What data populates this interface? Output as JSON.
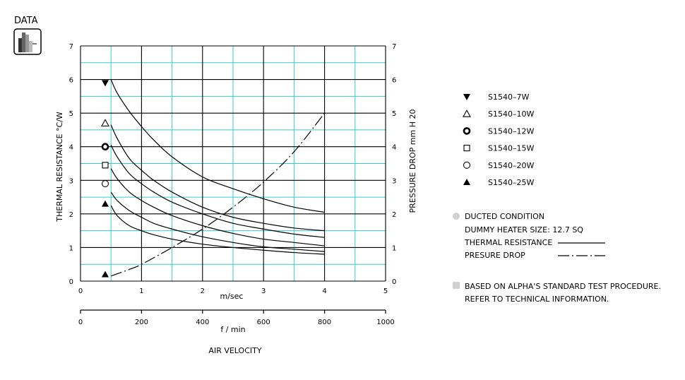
{
  "badge": {
    "label": "DATA",
    "icon": "bar-chart-icon"
  },
  "colors": {
    "grid_major": "#000000",
    "grid_minor": "#33cccc",
    "curve": "#000000",
    "note_bullet": "#d0d0d0"
  },
  "chart_data": {
    "type": "line",
    "grid": true,
    "y_left": {
      "label": "THERMAL  RESISTANCE  °C/W",
      "ylim": [
        0,
        7
      ],
      "ticks": [
        "0",
        "1",
        "2",
        "3",
        "4",
        "5",
        "6",
        "7"
      ]
    },
    "y_right": {
      "label": "PRESSURE  DROP    mm H 20",
      "ylim": [
        0,
        7
      ],
      "ticks": [
        "0",
        "1",
        "2",
        "3",
        "4",
        "5",
        "6",
        "7"
      ]
    },
    "x_top": {
      "unit": "m/sec",
      "xlim": [
        0,
        5
      ],
      "ticks": [
        "0",
        "1",
        "2",
        "3",
        "4",
        "5"
      ]
    },
    "x_bottom": {
      "unit": "f / min",
      "xlim": [
        0,
        1000
      ],
      "ticks": [
        "0",
        "200",
        "400",
        "600",
        "800",
        "1000"
      ]
    },
    "x_title": "AIR VELOCITY",
    "series": [
      {
        "name": "S1540–7W",
        "marker": "triangle-down-filled",
        "marker_value": 5.9,
        "x": [
          0.5,
          0.6,
          0.8,
          1.0,
          1.2,
          1.5,
          2.0,
          2.5,
          3.0,
          3.5,
          4.0
        ],
        "y": [
          6.0,
          5.6,
          5.05,
          4.6,
          4.2,
          3.7,
          3.1,
          2.75,
          2.45,
          2.2,
          2.05
        ]
      },
      {
        "name": "S1540–10W",
        "marker": "triangle-up-open",
        "marker_value": 4.7,
        "x": [
          0.5,
          0.6,
          0.8,
          1.0,
          1.2,
          1.5,
          2.0,
          2.5,
          3.0,
          3.5,
          4.0
        ],
        "y": [
          4.65,
          4.25,
          3.65,
          3.3,
          3.0,
          2.65,
          2.2,
          1.9,
          1.72,
          1.58,
          1.5
        ]
      },
      {
        "name": "S1540–12W",
        "marker": "circle-bold",
        "marker_value": 4.0,
        "x": [
          0.5,
          0.6,
          0.8,
          1.0,
          1.2,
          1.5,
          2.0,
          2.5,
          3.0,
          3.5,
          4.0
        ],
        "y": [
          4.05,
          3.7,
          3.2,
          2.9,
          2.65,
          2.35,
          2.0,
          1.72,
          1.55,
          1.4,
          1.3
        ]
      },
      {
        "name": "S1540–15W",
        "marker": "square-open",
        "marker_value": 3.45,
        "x": [
          0.5,
          0.6,
          0.8,
          1.0,
          1.2,
          1.5,
          2.0,
          2.5,
          3.0,
          3.5,
          4.0
        ],
        "y": [
          3.35,
          3.05,
          2.65,
          2.4,
          2.2,
          1.95,
          1.65,
          1.42,
          1.25,
          1.15,
          1.05
        ]
      },
      {
        "name": "S1540–20W",
        "marker": "circle-open",
        "marker_value": 2.9,
        "x": [
          0.5,
          0.6,
          0.8,
          1.0,
          1.2,
          1.5,
          2.0,
          2.5,
          3.0,
          3.5,
          4.0
        ],
        "y": [
          2.65,
          2.4,
          2.1,
          1.9,
          1.72,
          1.55,
          1.32,
          1.15,
          1.02,
          0.95,
          0.88
        ]
      },
      {
        "name": "S1540–25W",
        "marker": "triangle-up-filled",
        "marker_value": 2.3,
        "x": [
          0.5,
          0.6,
          0.8,
          1.0,
          1.2,
          1.5,
          2.0,
          2.5,
          3.0,
          3.5,
          4.0
        ],
        "y": [
          2.25,
          1.95,
          1.65,
          1.5,
          1.38,
          1.25,
          1.1,
          1.0,
          0.92,
          0.85,
          0.8
        ]
      },
      {
        "marker": "triangle-up-filled",
        "marker_value": 0.2,
        "dashed": true,
        "axis": "right",
        "x": [
          0.5,
          0.8,
          1.0,
          1.5,
          2.0,
          2.5,
          3.0,
          3.5,
          4.0
        ],
        "y": [
          0.15,
          0.35,
          0.5,
          1.0,
          1.55,
          2.2,
          2.95,
          3.85,
          5.0
        ]
      }
    ]
  },
  "legend_items": [
    {
      "label": "S1540–7W",
      "marker": "triangle-down-filled"
    },
    {
      "label": "S1540–10W",
      "marker": "triangle-up-open"
    },
    {
      "label": "S1540–12W",
      "marker": "circle-bold"
    },
    {
      "label": "S1540–15W",
      "marker": "square-open"
    },
    {
      "label": "S1540–20W",
      "marker": "circle-open"
    },
    {
      "label": "S1540–25W",
      "marker": "triangle-up-filled"
    }
  ],
  "notes": {
    "condition": "DUCTED CONDITION",
    "heater": "DUMMY HEATER SIZE: 12.7 SQ",
    "thermal": "THERMAL RESISTANCE",
    "pressure": "PRESURE DROP",
    "procedure_1": "BASED ON ALPHA'S STANDARD TEST PROCEDURE.",
    "procedure_2": "REFER TO TECHNICAL INFORMATION."
  }
}
